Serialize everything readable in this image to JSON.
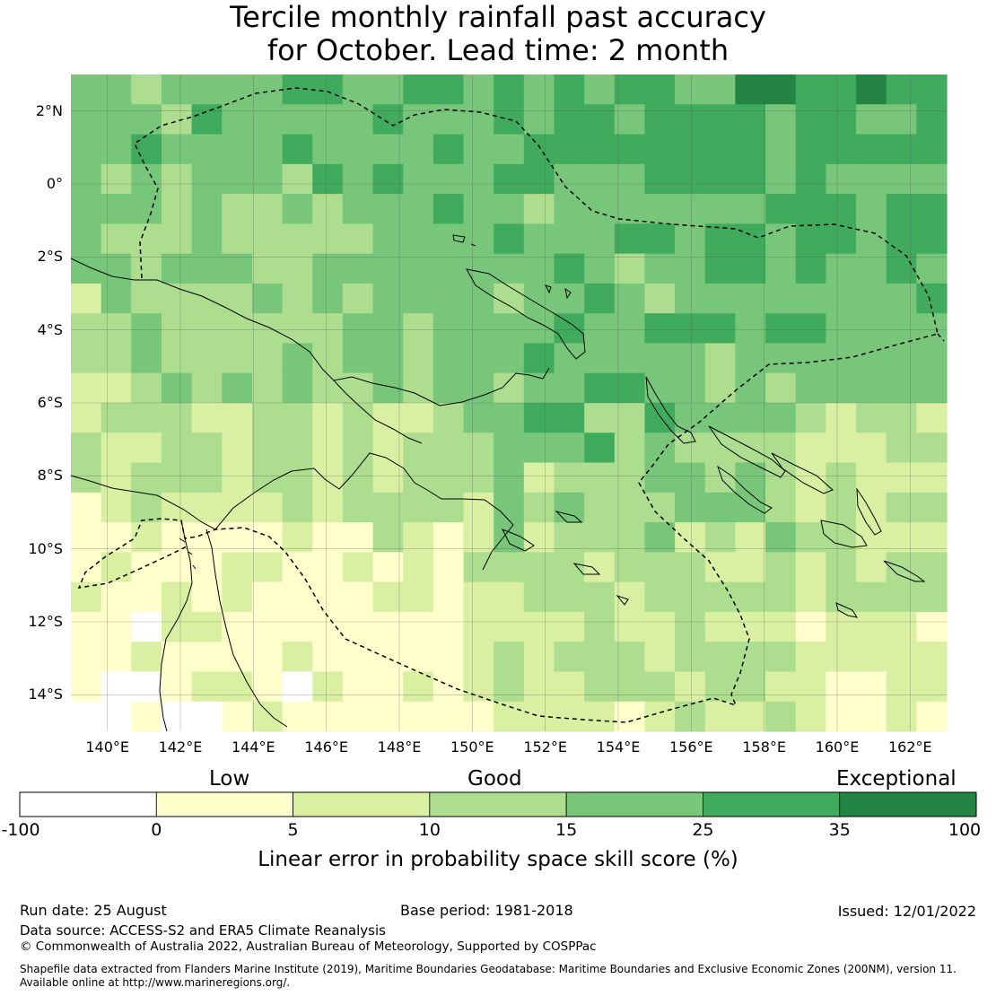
{
  "title": {
    "line1": "Tercile monthly rainfall past accuracy",
    "line2": "for October. Lead time: 2 month"
  },
  "map": {
    "lat_labels": [
      "2°N",
      "0°",
      "2°S",
      "4°S",
      "6°S",
      "8°S",
      "10°S",
      "12°S",
      "14°S"
    ],
    "lon_labels": [
      "140°E",
      "142°E",
      "144°E",
      "146°E",
      "148°E",
      "150°E",
      "152°E",
      "154°E",
      "156°E",
      "158°E",
      "160°E",
      "162°E"
    ],
    "extent": {
      "lon_min": 139.0,
      "lon_max": 163.0,
      "lat_min": -15.0,
      "lat_max": 3.0
    },
    "features": [
      "gridded skill score cells",
      "coastlines",
      "exclusive economic zone boundary (dashed)",
      "graticule"
    ]
  },
  "legend": {
    "category_labels": [
      "Low",
      "Good",
      "Exceptional"
    ],
    "ticks": [
      "-100",
      "0",
      "5",
      "10",
      "15",
      "25",
      "35",
      "100"
    ],
    "bins": [
      {
        "min": -100,
        "max": 0,
        "color": "#ffffff"
      },
      {
        "min": 0,
        "max": 5,
        "color": "#ffffcc"
      },
      {
        "min": 5,
        "max": 10,
        "color": "#d9f0a3"
      },
      {
        "min": 10,
        "max": 15,
        "color": "#addd8e"
      },
      {
        "min": 15,
        "max": 25,
        "color": "#78c679"
      },
      {
        "min": 25,
        "max": 35,
        "color": "#41ab5d"
      },
      {
        "min": 35,
        "max": 100,
        "color": "#238443"
      }
    ],
    "title": "Linear error in probability space skill score (%)"
  },
  "footer": {
    "run_date": "Run date: 25 August",
    "base_period": "Base period: 1981-2018",
    "issued": "Issued: 12/01/2022",
    "data_source": "Data source: ACCESS-S2 and ERA5 Climate Reanalysis",
    "copyright": "© Commonwealth of Australia 2022, Australian Bureau of Meteorology, Supported by COSPPac",
    "shapefile_line1": "Shapefile data extracted from Flanders Marine Institute (2019), Maritime Boundaries Geodatabase: Maritime Boundaries and Exclusive Economic Zones (200NM), version 11.",
    "shapefile_line2": "Available online at http://www.marineregions.org/."
  }
}
